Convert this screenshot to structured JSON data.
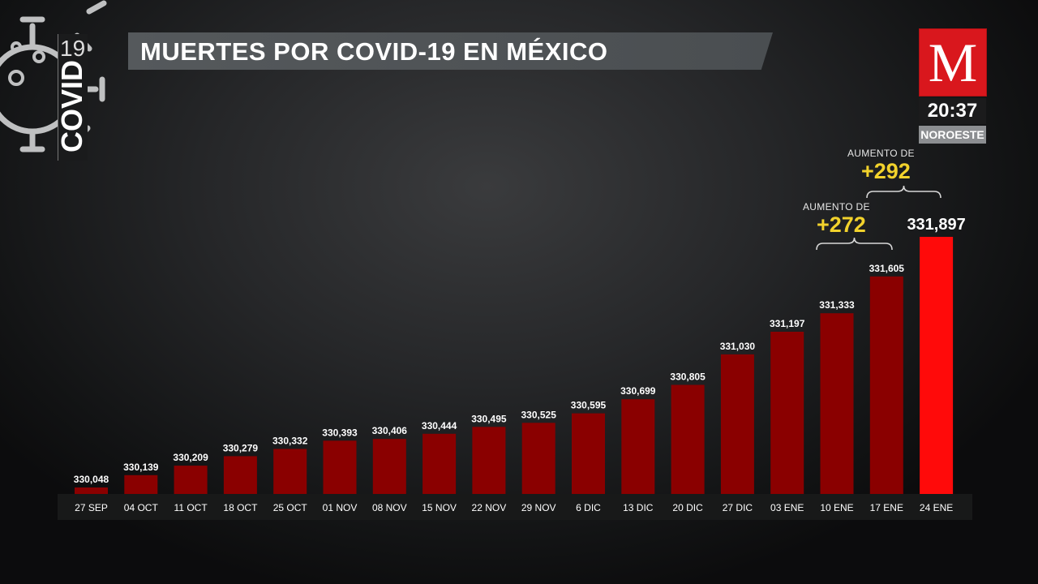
{
  "header": {
    "title": "MUERTES POR COVID-19 EN MÉXICO",
    "logo_number": "19",
    "logo_word": "COVID"
  },
  "brand": {
    "letter": "M",
    "time": "20:37",
    "region": "NOROESTE"
  },
  "colors": {
    "bar": "#8a0000",
    "bar_highlight": "#ff0a0a",
    "annotation": "#f2d22c",
    "brand_red": "#d9171d"
  },
  "annotations": [
    {
      "label": "AUMENTO DE",
      "value": "+272"
    },
    {
      "label": "AUMENTO DE",
      "value": "+292"
    }
  ],
  "chart_data": {
    "type": "bar",
    "title": "MUERTES POR COVID-19 EN MÉXICO",
    "xlabel": "",
    "ylabel": "",
    "ylim": [
      330000,
      331950
    ],
    "grid": false,
    "categories": [
      "27 SEP",
      "04 OCT",
      "11 OCT",
      "18 OCT",
      "25 OCT",
      "01 NOV",
      "08 NOV",
      "15 NOV",
      "22 NOV",
      "29 NOV",
      "6 DIC",
      "13 DIC",
      "20 DIC",
      "27 DIC",
      "03 ENE",
      "10 ENE",
      "17 ENE",
      "24 ENE"
    ],
    "values": [
      330048,
      330139,
      330209,
      330279,
      330332,
      330393,
      330406,
      330444,
      330495,
      330525,
      330595,
      330699,
      330805,
      331030,
      331197,
      331333,
      331605,
      331897
    ],
    "value_labels": [
      "330,048",
      "330,139",
      "330,209",
      "330,279",
      "330,332",
      "330,393",
      "330,406",
      "330,444",
      "330,495",
      "330,525",
      "330,595",
      "330,699",
      "330,805",
      "331,030",
      "331,197",
      "331,333",
      "331,605",
      "331,897"
    ],
    "highlight_index": 17
  }
}
